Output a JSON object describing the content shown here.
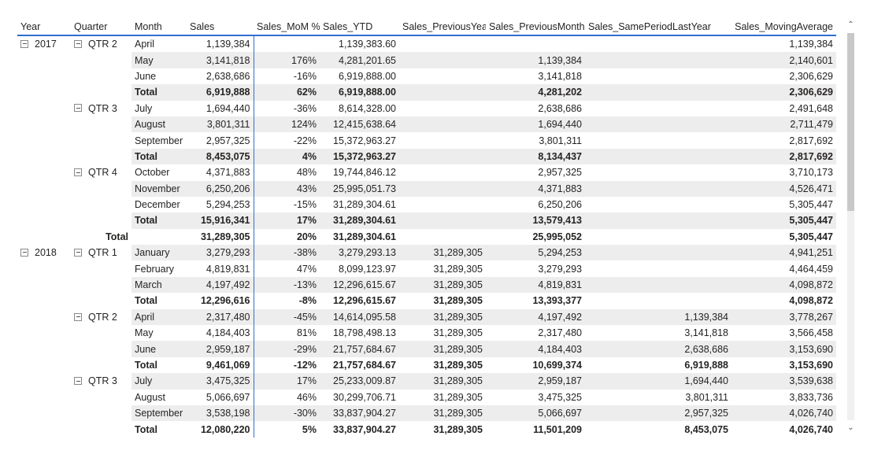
{
  "headers": [
    "Year",
    "Quarter",
    "Month",
    "Sales",
    "Sales_MoM %",
    "Sales_YTD",
    "Sales_PreviousYear",
    "Sales_PreviousMonth",
    "Sales_SamePeriodLastYear",
    "Sales_MovingAverage"
  ],
  "colors": {
    "accent": "#2f6fcf",
    "bar_positive": "#9fcdf4",
    "bar_negative": "#eeabae",
    "row_shade": "#eeeded"
  },
  "icons": {
    "expander": "collapse-minus-icon",
    "scroll_up": "chevron-up-icon",
    "scroll_down": "chevron-down-icon"
  },
  "rows": [
    {
      "type": "data",
      "year": "2017",
      "quarter": "QTR 2",
      "month": "April",
      "sales": "1,139,384",
      "mom": "",
      "mom_pct": 0,
      "ytd": "1,139,383.60",
      "py": "",
      "pm": "",
      "spl": "",
      "ma": "1,139,384"
    },
    {
      "type": "data",
      "year": "",
      "quarter": "",
      "month": "May",
      "sales": "3,141,818",
      "mom": "176%",
      "mom_pct": 176,
      "ytd": "4,281,201.65",
      "py": "",
      "pm": "1,139,384",
      "spl": "",
      "ma": "2,140,601"
    },
    {
      "type": "data",
      "year": "",
      "quarter": "",
      "month": "June",
      "sales": "2,638,686",
      "mom": "-16%",
      "mom_pct": -16,
      "ytd": "6,919,888.00",
      "py": "",
      "pm": "3,141,818",
      "spl": "",
      "ma": "2,306,629"
    },
    {
      "type": "total",
      "year": "",
      "quarter": "",
      "month": "Total",
      "sales": "6,919,888",
      "mom": "62%",
      "mom_pct": 0,
      "ytd": "6,919,888.00",
      "py": "",
      "pm": "4,281,202",
      "spl": "",
      "ma": "2,306,629"
    },
    {
      "type": "data",
      "year": "",
      "quarter": "QTR 3",
      "month": "July",
      "sales": "1,694,440",
      "mom": "-36%",
      "mom_pct": -36,
      "ytd": "8,614,328.00",
      "py": "",
      "pm": "2,638,686",
      "spl": "",
      "ma": "2,491,648"
    },
    {
      "type": "data",
      "year": "",
      "quarter": "",
      "month": "August",
      "sales": "3,801,311",
      "mom": "124%",
      "mom_pct": 124,
      "ytd": "12,415,638.64",
      "py": "",
      "pm": "1,694,440",
      "spl": "",
      "ma": "2,711,479"
    },
    {
      "type": "data",
      "year": "",
      "quarter": "",
      "month": "September",
      "sales": "2,957,325",
      "mom": "-22%",
      "mom_pct": -22,
      "ytd": "15,372,963.27",
      "py": "",
      "pm": "3,801,311",
      "spl": "",
      "ma": "2,817,692"
    },
    {
      "type": "total",
      "year": "",
      "quarter": "",
      "month": "Total",
      "sales": "8,453,075",
      "mom": "4%",
      "mom_pct": 0,
      "ytd": "15,372,963.27",
      "py": "",
      "pm": "8,134,437",
      "spl": "",
      "ma": "2,817,692"
    },
    {
      "type": "data",
      "year": "",
      "quarter": "QTR 4",
      "month": "October",
      "sales": "4,371,883",
      "mom": "48%",
      "mom_pct": 48,
      "ytd": "19,744,846.12",
      "py": "",
      "pm": "2,957,325",
      "spl": "",
      "ma": "3,710,173"
    },
    {
      "type": "data",
      "year": "",
      "quarter": "",
      "month": "November",
      "sales": "6,250,206",
      "mom": "43%",
      "mom_pct": 43,
      "ytd": "25,995,051.73",
      "py": "",
      "pm": "4,371,883",
      "spl": "",
      "ma": "4,526,471"
    },
    {
      "type": "data",
      "year": "",
      "quarter": "",
      "month": "December",
      "sales": "5,294,253",
      "mom": "-15%",
      "mom_pct": -15,
      "ytd": "31,289,304.61",
      "py": "",
      "pm": "6,250,206",
      "spl": "",
      "ma": "5,305,447"
    },
    {
      "type": "total",
      "year": "",
      "quarter": "",
      "month": "Total",
      "sales": "15,916,341",
      "mom": "17%",
      "mom_pct": 0,
      "ytd": "31,289,304.61",
      "py": "",
      "pm": "13,579,413",
      "spl": "",
      "ma": "5,305,447"
    },
    {
      "type": "yeartotal",
      "year": "",
      "quarter": "Total",
      "month": "",
      "sales": "31,289,305",
      "mom": "20%",
      "mom_pct": 0,
      "ytd": "31,289,304.61",
      "py": "",
      "pm": "25,995,052",
      "spl": "",
      "ma": "5,305,447"
    },
    {
      "type": "data",
      "year": "2018",
      "quarter": "QTR 1",
      "month": "January",
      "sales": "3,279,293",
      "mom": "-38%",
      "mom_pct": -38,
      "ytd": "3,279,293.13",
      "py": "31,289,305",
      "pm": "5,294,253",
      "spl": "",
      "ma": "4,941,251"
    },
    {
      "type": "data",
      "year": "",
      "quarter": "",
      "month": "February",
      "sales": "4,819,831",
      "mom": "47%",
      "mom_pct": 47,
      "ytd": "8,099,123.97",
      "py": "31,289,305",
      "pm": "3,279,293",
      "spl": "",
      "ma": "4,464,459"
    },
    {
      "type": "data",
      "year": "",
      "quarter": "",
      "month": "March",
      "sales": "4,197,492",
      "mom": "-13%",
      "mom_pct": -13,
      "ytd": "12,296,615.67",
      "py": "31,289,305",
      "pm": "4,819,831",
      "spl": "",
      "ma": "4,098,872"
    },
    {
      "type": "total",
      "year": "",
      "quarter": "",
      "month": "Total",
      "sales": "12,296,616",
      "mom": "-8%",
      "mom_pct": 0,
      "ytd": "12,296,615.67",
      "py": "31,289,305",
      "pm": "13,393,377",
      "spl": "",
      "ma": "4,098,872"
    },
    {
      "type": "data",
      "year": "",
      "quarter": "QTR 2",
      "month": "April",
      "sales": "2,317,480",
      "mom": "-45%",
      "mom_pct": -45,
      "ytd": "14,614,095.58",
      "py": "31,289,305",
      "pm": "4,197,492",
      "spl": "1,139,384",
      "ma": "3,778,267"
    },
    {
      "type": "data",
      "year": "",
      "quarter": "",
      "month": "May",
      "sales": "4,184,403",
      "mom": "81%",
      "mom_pct": 81,
      "ytd": "18,798,498.13",
      "py": "31,289,305",
      "pm": "2,317,480",
      "spl": "3,141,818",
      "ma": "3,566,458"
    },
    {
      "type": "data",
      "year": "",
      "quarter": "",
      "month": "June",
      "sales": "2,959,187",
      "mom": "-29%",
      "mom_pct": -29,
      "ytd": "21,757,684.67",
      "py": "31,289,305",
      "pm": "4,184,403",
      "spl": "2,638,686",
      "ma": "3,153,690"
    },
    {
      "type": "total",
      "year": "",
      "quarter": "",
      "month": "Total",
      "sales": "9,461,069",
      "mom": "-12%",
      "mom_pct": 0,
      "ytd": "21,757,684.67",
      "py": "31,289,305",
      "pm": "10,699,374",
      "spl": "6,919,888",
      "ma": "3,153,690"
    },
    {
      "type": "data",
      "year": "",
      "quarter": "QTR 3",
      "month": "July",
      "sales": "3,475,325",
      "mom": "17%",
      "mom_pct": 17,
      "ytd": "25,233,009.87",
      "py": "31,289,305",
      "pm": "2,959,187",
      "spl": "1,694,440",
      "ma": "3,539,638"
    },
    {
      "type": "data",
      "year": "",
      "quarter": "",
      "month": "August",
      "sales": "5,066,697",
      "mom": "46%",
      "mom_pct": 46,
      "ytd": "30,299,706.71",
      "py": "31,289,305",
      "pm": "3,475,325",
      "spl": "3,801,311",
      "ma": "3,833,736"
    },
    {
      "type": "data",
      "year": "",
      "quarter": "",
      "month": "September",
      "sales": "3,538,198",
      "mom": "-30%",
      "mom_pct": -30,
      "ytd": "33,837,904.27",
      "py": "31,289,305",
      "pm": "5,066,697",
      "spl": "2,957,325",
      "ma": "4,026,740"
    },
    {
      "type": "total",
      "year": "",
      "quarter": "",
      "month": "Total",
      "sales": "12,080,220",
      "mom": "5%",
      "mom_pct": 0,
      "ytd": "33,837,904.27",
      "py": "31,289,305",
      "pm": "11,501,209",
      "spl": "8,453,075",
      "ma": "4,026,740"
    }
  ],
  "scrollbar": {
    "up_glyph": "⌃",
    "down_glyph": "⌄",
    "position_fraction": 0.0,
    "visible_fraction": 0.46
  }
}
